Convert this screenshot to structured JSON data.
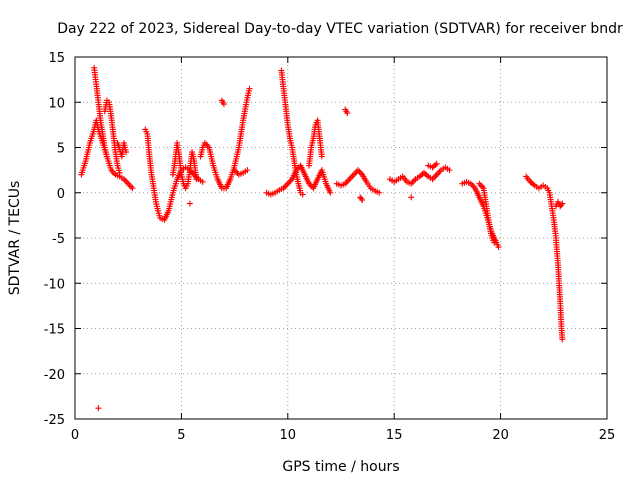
{
  "chart_data": {
    "type": "scatter",
    "title": "Day 222 of 2023, Sidereal Day-to-day VTEC variation (SDTVAR) for receiver bndr",
    "xlabel": "GPS time / hours",
    "ylabel": "SDTVAR / TECUs",
    "xlim": [
      0,
      25
    ],
    "ylim": [
      -25,
      15
    ],
    "xticks": [
      0,
      5,
      10,
      15,
      20,
      25
    ],
    "yticks": [
      15,
      10,
      5,
      0,
      -5,
      -10,
      -15,
      -20,
      -25
    ],
    "grid": true,
    "marker": "+",
    "series": [
      {
        "name": "SDTVAR",
        "color": "#ff0000",
        "segments": [
          [
            [
              0.3,
              2.0
            ],
            [
              0.5,
              3.5
            ],
            [
              0.7,
              5.5
            ],
            [
              0.9,
              7.0
            ],
            [
              1.0,
              8.0
            ],
            [
              1.1,
              7.0
            ],
            [
              1.3,
              5.5
            ],
            [
              1.5,
              4.0
            ],
            [
              1.7,
              2.5
            ],
            [
              1.9,
              2.0
            ],
            [
              2.1,
              1.8
            ],
            [
              2.3,
              1.5
            ],
            [
              2.5,
              1.0
            ],
            [
              2.7,
              0.5
            ]
          ],
          [
            [
              0.9,
              13.8
            ],
            [
              1.0,
              12.0
            ],
            [
              1.1,
              10.0
            ],
            [
              1.2,
              8.0
            ],
            [
              1.3,
              6.5
            ],
            [
              1.4,
              5.0
            ],
            [
              1.5,
              4.0
            ]
          ],
          [
            [
              1.4,
              9.0
            ],
            [
              1.5,
              10.2
            ],
            [
              1.6,
              10.0
            ],
            [
              1.7,
              8.5
            ],
            [
              1.8,
              6.5
            ],
            [
              1.9,
              4.5
            ],
            [
              2.0,
              3.0
            ],
            [
              2.1,
              2.2
            ]
          ],
          [
            [
              2.0,
              5.5
            ],
            [
              2.1,
              4.8
            ],
            [
              2.2,
              4.0
            ],
            [
              2.3,
              5.5
            ],
            [
              2.4,
              4.5
            ]
          ],
          [
            [
              3.3,
              7.0
            ],
            [
              3.4,
              6.5
            ],
            [
              3.5,
              4.0
            ],
            [
              3.6,
              2.0
            ],
            [
              3.7,
              0.5
            ],
            [
              3.8,
              -1.0
            ],
            [
              3.9,
              -2.0
            ],
            [
              4.0,
              -2.8
            ],
            [
              4.2,
              -3.0
            ],
            [
              4.4,
              -2.0
            ],
            [
              4.6,
              0.0
            ],
            [
              4.8,
              1.5
            ],
            [
              5.0,
              2.5
            ],
            [
              5.2,
              2.8
            ],
            [
              5.4,
              2.5
            ],
            [
              5.6,
              2.0
            ],
            [
              5.8,
              1.5
            ],
            [
              6.0,
              1.2
            ]
          ],
          [
            [
              4.6,
              2.0
            ],
            [
              4.7,
              3.5
            ],
            [
              4.8,
              5.5
            ],
            [
              4.9,
              4.0
            ],
            [
              5.0,
              2.0
            ],
            [
              5.1,
              1.0
            ],
            [
              5.2,
              0.5
            ],
            [
              5.3,
              1.0
            ],
            [
              5.4,
              2.5
            ],
            [
              5.5,
              4.5
            ],
            [
              5.6,
              3.5
            ],
            [
              5.7,
              1.5
            ]
          ],
          [
            [
              5.4,
              -1.2
            ]
          ],
          [
            [
              5.9,
              4.0
            ],
            [
              6.0,
              5.0
            ],
            [
              6.1,
              5.5
            ],
            [
              6.3,
              5.0
            ],
            [
              6.5,
              3.0
            ],
            [
              6.7,
              1.5
            ],
            [
              6.9,
              0.5
            ],
            [
              7.1,
              0.5
            ],
            [
              7.3,
              1.5
            ],
            [
              7.5,
              3.0
            ],
            [
              7.7,
              5.0
            ],
            [
              7.9,
              8.0
            ],
            [
              8.1,
              10.5
            ],
            [
              8.2,
              11.5
            ]
          ],
          [
            [
              6.9,
              10.2
            ],
            [
              7.0,
              9.8
            ]
          ],
          [
            [
              7.5,
              2.5
            ],
            [
              7.7,
              2.0
            ],
            [
              7.9,
              2.2
            ],
            [
              8.1,
              2.5
            ]
          ],
          [
            [
              9.0,
              0.0
            ],
            [
              9.2,
              -0.2
            ],
            [
              9.4,
              0.0
            ],
            [
              9.6,
              0.3
            ],
            [
              9.8,
              0.5
            ],
            [
              10.0,
              1.0
            ],
            [
              10.2,
              1.5
            ],
            [
              10.4,
              2.5
            ],
            [
              10.6,
              3.0
            ],
            [
              10.8,
              2.0
            ],
            [
              11.0,
              1.0
            ],
            [
              11.2,
              0.5
            ],
            [
              11.4,
              1.5
            ],
            [
              11.6,
              2.5
            ],
            [
              11.8,
              1.0
            ],
            [
              12.0,
              0.0
            ]
          ],
          [
            [
              9.7,
              13.5
            ],
            [
              9.8,
              11.5
            ],
            [
              9.9,
              9.5
            ],
            [
              10.0,
              7.5
            ],
            [
              10.1,
              6.0
            ],
            [
              10.2,
              5.0
            ],
            [
              10.3,
              3.5
            ],
            [
              10.4,
              2.0
            ],
            [
              10.5,
              1.0
            ],
            [
              10.6,
              0.0
            ],
            [
              10.7,
              -0.2
            ]
          ],
          [
            [
              11.0,
              3.0
            ],
            [
              11.1,
              5.0
            ],
            [
              11.2,
              6.0
            ],
            [
              11.3,
              7.5
            ],
            [
              11.4,
              8.0
            ],
            [
              11.5,
              6.0
            ],
            [
              11.6,
              4.0
            ]
          ],
          [
            [
              12.7,
              9.2
            ],
            [
              12.8,
              8.8
            ]
          ],
          [
            [
              12.3,
              1.0
            ],
            [
              12.5,
              0.8
            ],
            [
              12.7,
              1.0
            ],
            [
              12.9,
              1.5
            ],
            [
              13.1,
              2.0
            ],
            [
              13.3,
              2.5
            ],
            [
              13.5,
              2.0
            ],
            [
              13.7,
              1.2
            ],
            [
              13.9,
              0.5
            ],
            [
              14.1,
              0.2
            ],
            [
              14.3,
              0.0
            ]
          ],
          [
            [
              13.4,
              -0.5
            ],
            [
              13.5,
              -0.8
            ]
          ],
          [
            [
              14.8,
              1.5
            ],
            [
              15.0,
              1.2
            ],
            [
              15.2,
              1.5
            ],
            [
              15.4,
              1.8
            ],
            [
              15.6,
              1.2
            ],
            [
              15.8,
              1.0
            ],
            [
              16.0,
              1.5
            ],
            [
              16.2,
              1.8
            ],
            [
              16.4,
              2.2
            ],
            [
              16.6,
              1.8
            ],
            [
              16.8,
              1.5
            ],
            [
              17.0,
              2.0
            ],
            [
              17.2,
              2.5
            ],
            [
              17.4,
              2.8
            ],
            [
              17.6,
              2.5
            ]
          ],
          [
            [
              15.8,
              -0.5
            ]
          ],
          [
            [
              16.6,
              3.0
            ],
            [
              16.8,
              2.8
            ],
            [
              17.0,
              3.2
            ]
          ],
          [
            [
              18.2,
              1.0
            ],
            [
              18.4,
              1.2
            ],
            [
              18.6,
              1.0
            ],
            [
              18.8,
              0.5
            ],
            [
              19.0,
              -0.5
            ],
            [
              19.2,
              -1.5
            ],
            [
              19.4,
              -3.0
            ],
            [
              19.6,
              -4.5
            ],
            [
              19.8,
              -5.5
            ],
            [
              19.9,
              -6.0
            ]
          ],
          [
            [
              19.0,
              1.0
            ],
            [
              19.2,
              0.5
            ],
            [
              19.3,
              -1.0
            ],
            [
              19.4,
              -2.5
            ],
            [
              19.5,
              -4.0
            ],
            [
              19.6,
              -5.0
            ],
            [
              19.7,
              -5.5
            ]
          ],
          [
            [
              21.2,
              1.8
            ],
            [
              21.4,
              1.2
            ],
            [
              21.6,
              0.8
            ],
            [
              21.8,
              0.5
            ],
            [
              22.0,
              0.8
            ],
            [
              22.2,
              0.5
            ],
            [
              22.3,
              0.0
            ],
            [
              22.4,
              -1.5
            ],
            [
              22.5,
              -3.0
            ],
            [
              22.6,
              -5.0
            ],
            [
              22.7,
              -8.0
            ],
            [
              22.8,
              -12.0
            ],
            [
              22.85,
              -14.5
            ],
            [
              22.9,
              -16.2
            ]
          ],
          [
            [
              22.6,
              -1.5
            ],
            [
              22.7,
              -1.0
            ],
            [
              22.8,
              -1.5
            ],
            [
              22.9,
              -1.2
            ]
          ],
          [
            [
              1.1,
              -23.8
            ]
          ]
        ]
      }
    ]
  }
}
